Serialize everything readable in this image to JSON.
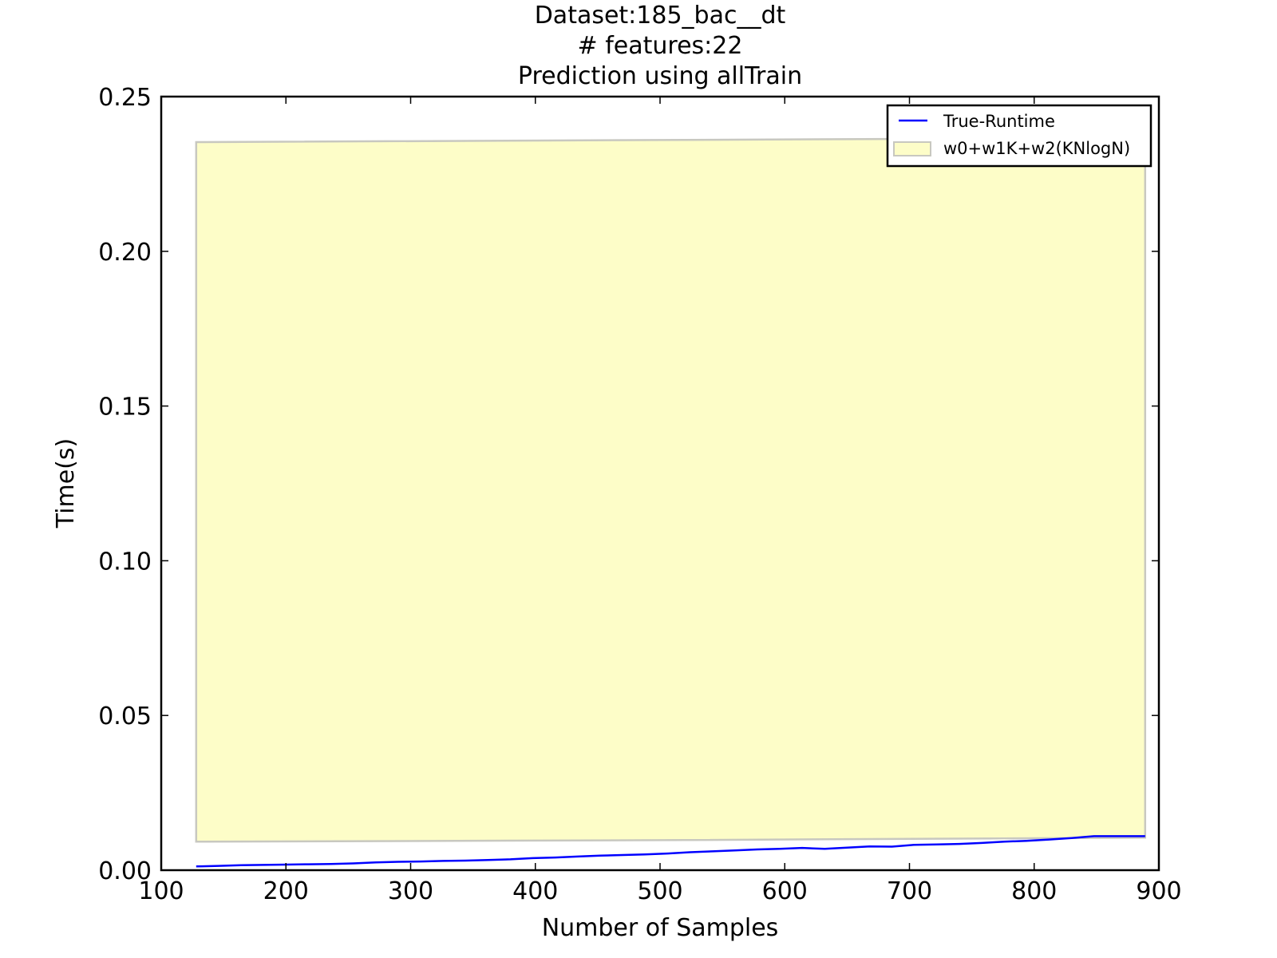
{
  "chart_data": {
    "type": "line",
    "title_lines": [
      "Dataset:185_bac__dt",
      "# features:22",
      "Prediction using allTrain"
    ],
    "xlabel": "Number of Samples",
    "ylabel": "Time(s)",
    "xlim": [
      100,
      900
    ],
    "ylim": [
      0,
      0.25
    ],
    "x_ticks": [
      100,
      200,
      300,
      400,
      500,
      600,
      700,
      800,
      900
    ],
    "x_tick_labels": [
      "100",
      "200",
      "300",
      "400",
      "500",
      "600",
      "700",
      "800",
      "900"
    ],
    "y_ticks": [
      0,
      0.05,
      0.1,
      0.15,
      0.2,
      0.25
    ],
    "y_tick_labels": [
      "0.00",
      "0.05",
      "0.10",
      "0.15",
      "0.20",
      "0.25"
    ],
    "grid": false,
    "legend_position": "top-right",
    "series": [
      {
        "name": "True-Runtime",
        "kind": "line",
        "color": "#0000ff",
        "points": [
          [
            128,
            0.0012
          ],
          [
            146,
            0.0014
          ],
          [
            164,
            0.0016
          ],
          [
            182,
            0.0017
          ],
          [
            200,
            0.0018
          ],
          [
            218,
            0.0019
          ],
          [
            236,
            0.002
          ],
          [
            254,
            0.0022
          ],
          [
            272,
            0.0025
          ],
          [
            290,
            0.0027
          ],
          [
            308,
            0.0028
          ],
          [
            326,
            0.003
          ],
          [
            344,
            0.0031
          ],
          [
            362,
            0.0033
          ],
          [
            380,
            0.0035
          ],
          [
            398,
            0.0039
          ],
          [
            416,
            0.0041
          ],
          [
            434,
            0.0044
          ],
          [
            452,
            0.0047
          ],
          [
            470,
            0.0049
          ],
          [
            488,
            0.0051
          ],
          [
            506,
            0.0054
          ],
          [
            524,
            0.0058
          ],
          [
            542,
            0.0061
          ],
          [
            560,
            0.0064
          ],
          [
            578,
            0.0067
          ],
          [
            596,
            0.0069
          ],
          [
            614,
            0.0072
          ],
          [
            632,
            0.0069
          ],
          [
            650,
            0.0073
          ],
          [
            668,
            0.0077
          ],
          [
            686,
            0.0076
          ],
          [
            704,
            0.0082
          ],
          [
            722,
            0.0083
          ],
          [
            740,
            0.0085
          ],
          [
            758,
            0.0088
          ],
          [
            776,
            0.0092
          ],
          [
            794,
            0.0095
          ],
          [
            812,
            0.0099
          ],
          [
            830,
            0.0104
          ],
          [
            848,
            0.011
          ],
          [
            866,
            0.011
          ],
          [
            889,
            0.011
          ]
        ]
      },
      {
        "name": "w0+w1K+w2(KNlogN)",
        "kind": "band",
        "fill": "#fdfdc8",
        "edge": "#c8c8c0",
        "upper": [
          [
            128,
            0.2353
          ],
          [
            680,
            0.2363
          ],
          [
            889,
            0.2366
          ]
        ],
        "lower": [
          [
            128,
            0.0092
          ],
          [
            500,
            0.0097
          ],
          [
            889,
            0.0105
          ]
        ]
      }
    ]
  }
}
